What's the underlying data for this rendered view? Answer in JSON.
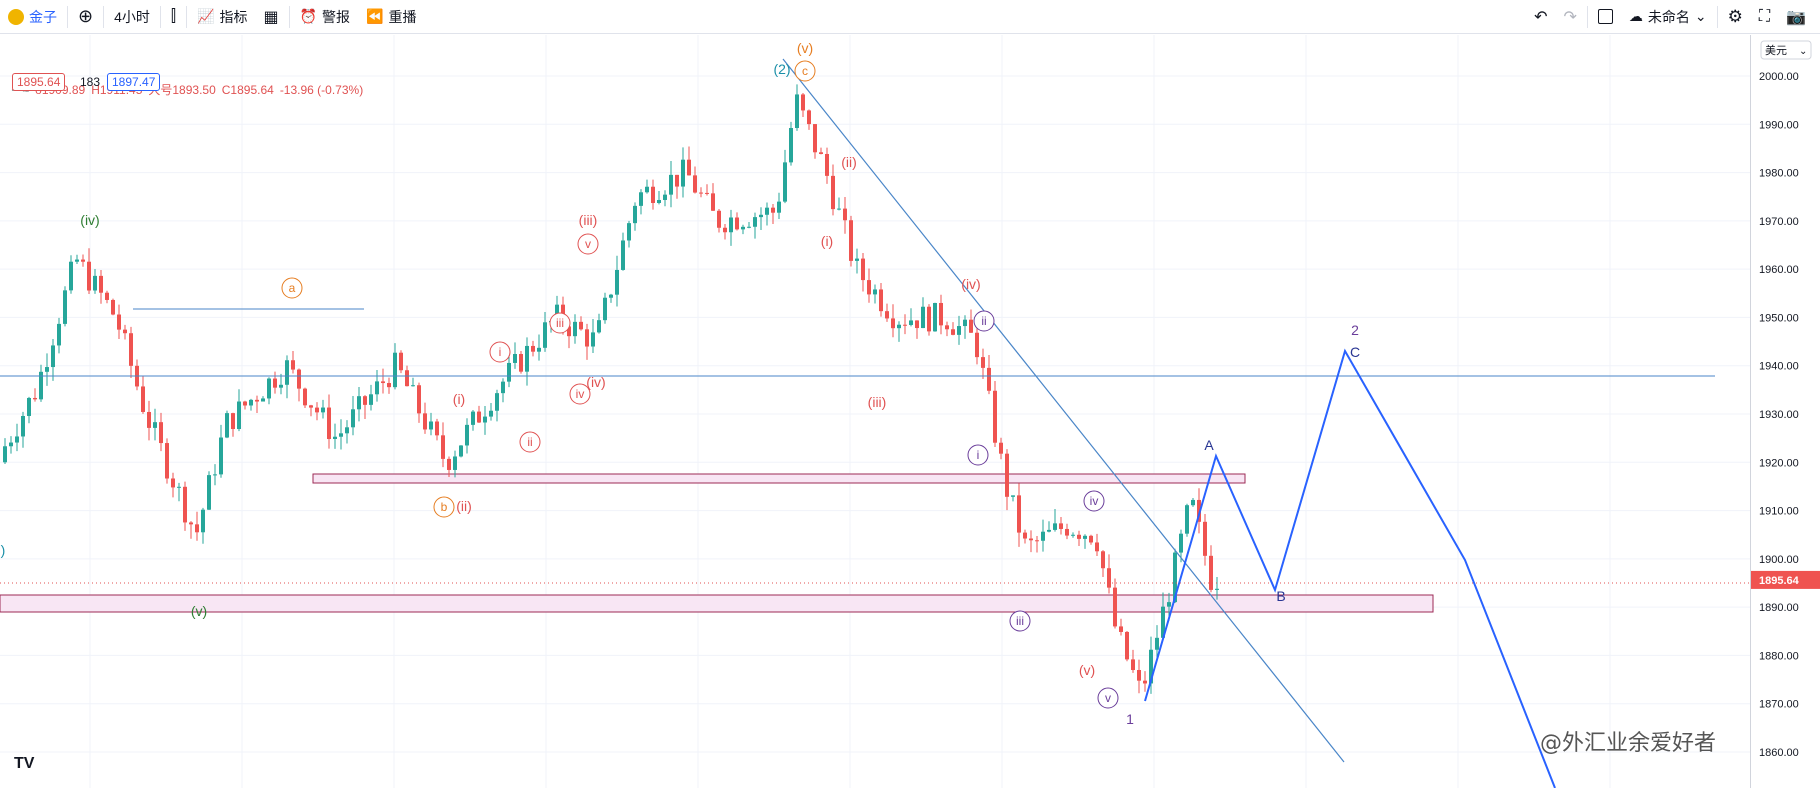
{
  "toolbar": {
    "symbol": "金子",
    "interval": "4小时",
    "indicators": "指标",
    "alert": "警报",
    "replay": "重播",
    "layout_name": "未命名"
  },
  "legend": {
    "open": "o1909.89",
    "high": "H1911.45",
    "low": "大号1893.50",
    "close": "C1895.64",
    "change": "-13.96 (-0.73%)",
    "sell_price": "1895.64",
    "spread": "183",
    "buy_price": "1897.47"
  },
  "price_axis": {
    "currency": "美元",
    "ticks": [
      "2000.00",
      "1990.00",
      "1980.00",
      "1970.00",
      "1960.00",
      "1950.00",
      "1940.00",
      "1930.00",
      "1920.00",
      "1910.00",
      "1900.00",
      "1890.00",
      "1880.00",
      "1870.00",
      "1860.00"
    ],
    "last_price": "1895.64"
  },
  "colors": {
    "up": "#26a69a",
    "down": "#ef5350",
    "trend": "#2962ff",
    "wave_red": "#e05252",
    "wave_purple": "#7b3fa0",
    "wave_green": "#2e7d32",
    "wave_orange": "#e67e22",
    "zone": "#f3e5f5"
  },
  "wave_labels": [
    "(iv)",
    "(v)",
    "a",
    "b",
    "(ii)",
    "(i)",
    "i",
    "ii",
    "iii",
    "iv",
    "(iii)",
    "v",
    "(iv)",
    "(2)",
    "c",
    "(v)",
    "(ii)",
    "(i)",
    "(iii)",
    "(iv)",
    "ii",
    "i",
    "iii",
    "iv",
    "(v)",
    "v",
    "1",
    "A",
    "B",
    "2",
    "C",
    ")"
  ],
  "watermark": "@外汇业余爱好者",
  "tv_logo": "TV"
}
